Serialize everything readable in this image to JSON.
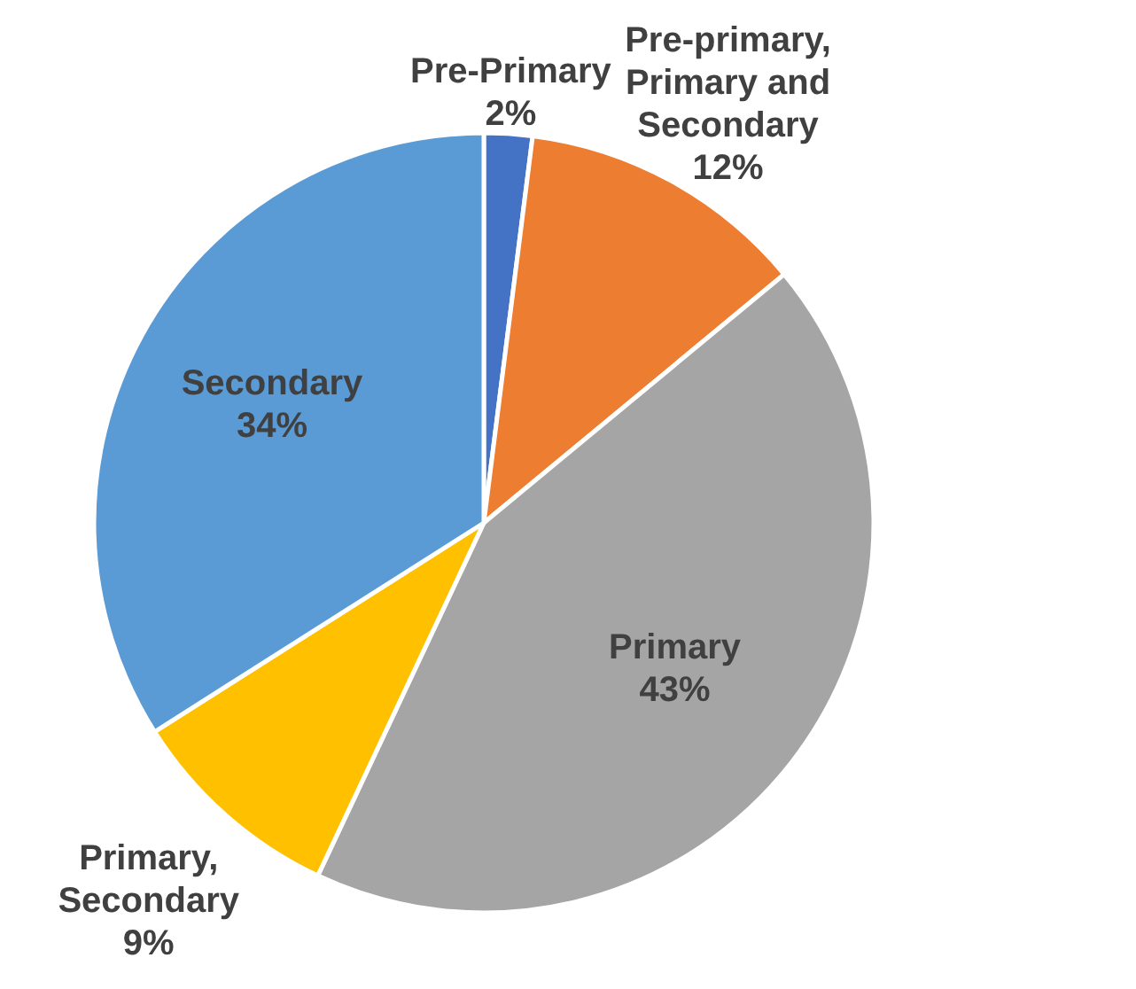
{
  "chart_data": {
    "type": "pie",
    "categories": [
      "Pre-Primary",
      "Pre-primary, Primary and Secondary",
      "Primary",
      "Primary, Secondary",
      "Secondary"
    ],
    "values": [
      2,
      12,
      43,
      9,
      34
    ],
    "colors": [
      "#4472c4",
      "#ed7d31",
      "#a5a5a5",
      "#ffc000",
      "#5b9bd5"
    ],
    "value_labels": [
      "2%",
      "12%",
      "43%",
      "9%",
      "34%"
    ]
  }
}
